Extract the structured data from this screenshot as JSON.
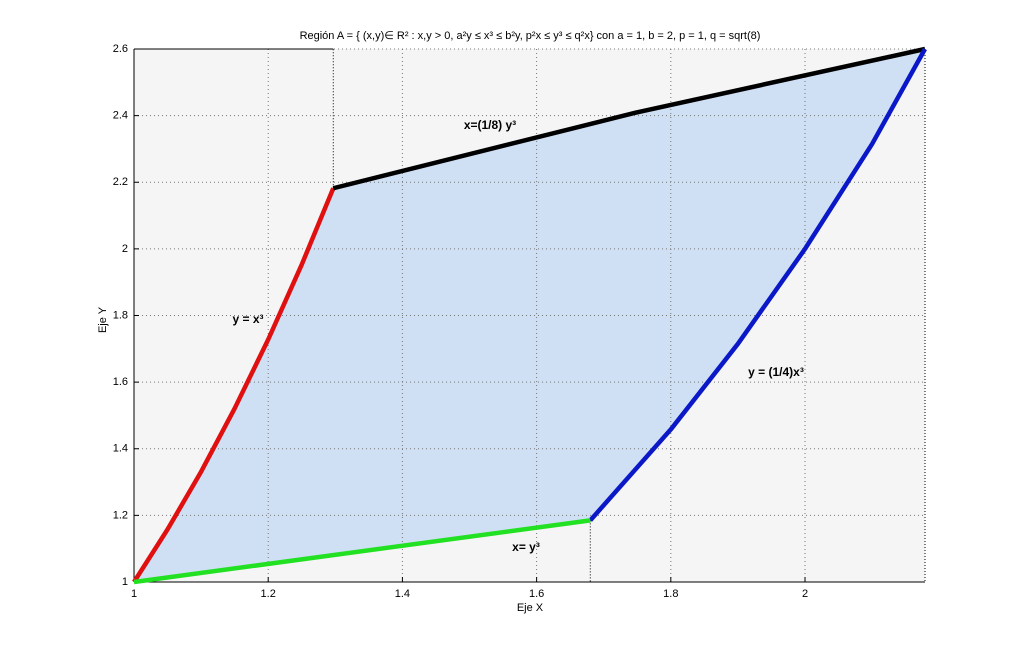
{
  "chart_data": {
    "type": "line",
    "title": "Región A = { (x,y)∈ R² : x,y > 0, a²y ≤ x³ ≤ b²y, p²x ≤ y³ ≤ q²x}  con a = 1, b = 2, p = 1, q = sqrt(8)",
    "x_label": "Eje X",
    "y_label": "Eje Y",
    "xlim": [
      1,
      2.1788
    ],
    "ylim": [
      1,
      2.6
    ],
    "xticks": [
      1,
      1.2,
      1.4,
      1.6,
      1.8,
      2
    ],
    "yticks": [
      1,
      1.2,
      1.4,
      1.6,
      1.8,
      2,
      2.2,
      2.4,
      2.6
    ],
    "grid": true,
    "series": [
      {
        "name": "y = x³",
        "color": "#e01010",
        "x": [
          1,
          1.05,
          1.1,
          1.15,
          1.2,
          1.25,
          1.297
        ],
        "values": [
          1,
          1.158,
          1.331,
          1.521,
          1.728,
          1.953,
          2.182
        ]
      },
      {
        "name": "x=(1/8) y³",
        "color": "#000000",
        "x": [
          1.297,
          1.75,
          2.1788
        ],
        "values": [
          2.182,
          2.41,
          2.6
        ]
      },
      {
        "name": "y = (1/4)x³",
        "color": "#0a18c8",
        "x": [
          1.68,
          1.8,
          1.9,
          2.0,
          2.1,
          2.1788
        ],
        "values": [
          1.185,
          1.458,
          1.715,
          2.0,
          2.315,
          2.6
        ]
      },
      {
        "name": "x= y³",
        "color": "#22e022",
        "x": [
          1,
          1.68
        ],
        "values": [
          1,
          1.185
        ]
      }
    ]
  }
}
